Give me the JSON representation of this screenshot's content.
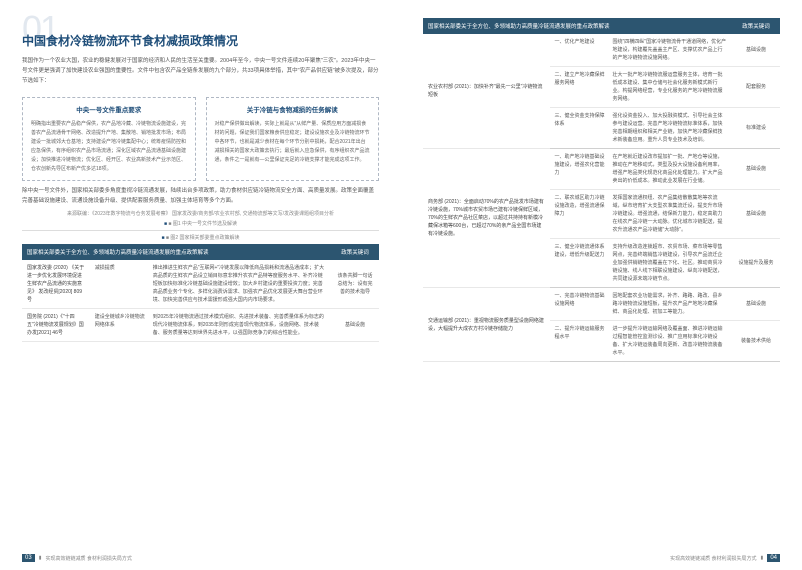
{
  "colors": {
    "header_bg": "#2c5570",
    "header_fg": "#ffffff",
    "title_color": "#1f4e79",
    "bignum_color": "#e2e8ef",
    "body_text": "#555555",
    "border_dashed": "#b0b8c4",
    "row_border": "#e8e8e8"
  },
  "bignum": "01",
  "title": "中国食材冷链物流环节食材减损政策情况",
  "intro": "我国作为一个农业大国，农业的稳健发展对于国家的经济和人民的生活至关重要。2004年至今，中央一号文件连续20年聚焦\"三农\"。2023年中央一号文件更是强调了加快建设农业强国的重要性。文件中包含农产品全链条发展的九个部分，共33项具体举措，其中\"农产品供应链\"被多次提及，部分节选如下：",
  "panel_a_title": "中央一号文件重点要求",
  "panel_a_body": "明确指出重要农产品稳产保供，农产品地冷藏、冷链物流设施建设，完善农产品流通骨干网络、改造提升产地、集散地、销地批发市场；布局建设一批城郊大仓基地；支持建设产地冷链集配中心；统筹疫情防控和应急保供，有序组织农产品市场流通；深化区域农产品流通基础设施建设；加快推进冷链物流；优化区、经开区、农业高新技术产业示范区、仓农创新先导区布新产优多达18项。",
  "panel_b_title": "关于冷链与食物减损的任务解读",
  "panel_b_body": "对稳产保供做出解读，实际上就是从\"从鲜产量、保质应用方面减损食材的问题，保证我们国家粮食供应稳定；建设设施农业及冷链物流环节中各环节，也就是减少食材在每个环节分别中损耗，配合2021年出台减损相关的国家大政策去执行；最后就入应急保供，有序组织农产品流通，条件之一是就有—公里保证充足的冷链支撑才能完成这项工作。",
  "after": "除中央一号文件外，国家相关部委多角度重视冷链流通发展，陆续出台多项政策，助力食材供应链冷链物流安全方面、高质量发展。政策全面覆盖完善基础设施建设、流通设施设备升级、提供配套服务质量、加强主体培育等多个方面。",
  "caption1": "来源联编：《2023年数字物流与仓务发展考察》 国家发改委/商务部/农业农村部, 交通物流部等文写/发改委课题组项目分析",
  "fig1": "■ 图1 中央一号文件节选及解读",
  "fig2": "■ 图2 国家相关部委重点政策解读",
  "th1": "国家相关部委关于全方位、多领域助力高质量冷链流通发展的重点政策解读",
  "th2": "政策关键词",
  "rows_left": [
    {
      "col1": "国家发改委 (2020)\n《关于进一步优化发展环境促进生鲜农产品流通的实施意见》\n发改经贸[2020] 809号",
      "kw": "减损提质",
      "mid": "推出推进生鲜农产品\"互联网+\"冷链发展以降低商品损耗和流通品通成本；扩大高品质的生鲜农产品设立销目标意非推升农农产品特等度服务水平、补齐冷链短板加快标准化冷链基础设施建设增效；加大乡村建设的重要投资力度；完善高品质业务个专化、多样化消费诉需求、加强农产品优化发展更大舞台营业环境、加快完善供应与技术需援形成强大国内内市场要求。",
      "tag": "该条共脚一句话总结为：设有完善的技术指导"
    },
    {
      "col1": "国务院 (2021)《\"十四五\"冷链物流发展规划》国办发[2021] 46号",
      "kw": "建设全链城乡冷链物流网络体系",
      "mid": "到2025年冷链物流通过技术模式组织、先进技术装备、完善质量体系为标志的现代冷链物流体系，到2035年则形成完善现代物流体系，设施网络、技术装备、服务质量等达到世界先进水平，以强国际竞争力的综合性能业。",
      "tag": "基础设施"
    }
  ],
  "rows_right": [
    {
      "group": "农业农村部 (2021)：加快补齐\"最先一公里\"冷链物流短板",
      "items": [
        {
          "left": "一、优化产地建设",
          "right": "围绕\"四横四纵\"国家冷链物流骨干通道网络，优化产地建设，构建覆先盖盖主产区、支撑优农产品上行的产地冷链物流设施网络。",
          "tag": "基础设施"
        },
        {
          "left": "二、建立产地冷藏保鲜服务网络",
          "right": "壮大一批产地冷链物流服运营服务主体，培育一批低成本建设、集中仓储与社会化服务新模式新行业。构提网络经营，专业化服务的产地冷链物流服务网络。",
          "tag": "配套服务"
        },
        {
          "left": "三、健全资金支持保障体系",
          "right": "强化设资金投入、加大投融资模式、引导社会主体参与建设运营。完善产地冷链物流标准体系，加快完善相期组织和相关产业链，加快产地冷藏保鲜技术新装备应用。重升人员专业技术及培训。",
          "tag": "标准建设"
        }
      ]
    },
    {
      "group": "商务部 (2021)：全面启动70%的农产品批发市场建有冷链设施，70%城市农贸市场已建有冷链保鲜区域，70%的生鲜农产品社区菜店，以超过共持持有新模冷藏保冰箱等600台，已超过70%的亲产品全国市场建有冷链设施。",
      "items": [
        {
          "left": "一、助产地冷链基础设施建设，增强农化营能力",
          "right": "在产地就近建设改市提加扩一批、产地仓等设施，推动在产地移动式，类型及投大设施设备利用率，增强产地品类化规范化商品化处理能力。扩大产品卖出的价低成本。推动此业发展在行业储。",
          "tag": "基础设施"
        },
        {
          "left": "二、联农城区助力冷链设施改造，增强流通保障力",
          "right": "发挥国家流通权纽、农产品集结散散集地等农流域，纵市培育扩大支型农准集流迁设，提支升市场冷链建设。增强流通，结保新力能力，稳定高助力在线农产品冷链一大动脉。优化城市冷链配送，提农升流通农产品冷链储\"大动脉\"。",
          "tag": "基础设施"
        },
        {
          "left": "三、健全冷链流通体系建设，增低升级配送力",
          "right": "支持升级改造连锁超市、农贸市场、菜市场等零售网点，完善终端销售冷链建设，引导农产品流迁企业加强供销链物流覆盖在下化、社区。推动商贸冷链设施、线人线下相联设施建设、纵向冷链配送，共同建设源未端冷链节点。",
          "tag": "设施提升及服务"
        }
      ]
    },
    {
      "group": "交通运输部 (2021)：重视物流服务质量型设施网络建设，大幅提升大成农方村冷链存储能力",
      "items": [
        {
          "left": "一、完善冷链物流基础设施网络",
          "right": "因地配套农业功能需求，补齐、路路、路改、县乡路冷链物流设施短板，提升农产品产地地冷藏保鲜、商品化处理、初加工等能力。",
          "tag": "基础设施"
        },
        {
          "left": "二、提升冷链运输服务程水平",
          "right": "进一步提升冷链运输网络及覆盖面、推进冷链运输过程智能管控监测诊设、推广应用标准化冷链设备、扩大冷链运装备周向更新、改善冷链物流装备水平。",
          "tag": "装备技术供给"
        }
      ]
    }
  ],
  "footer_text": "实现高效链链减质 食材利润损失局方式",
  "pg_left": "03",
  "pg_right": "04"
}
